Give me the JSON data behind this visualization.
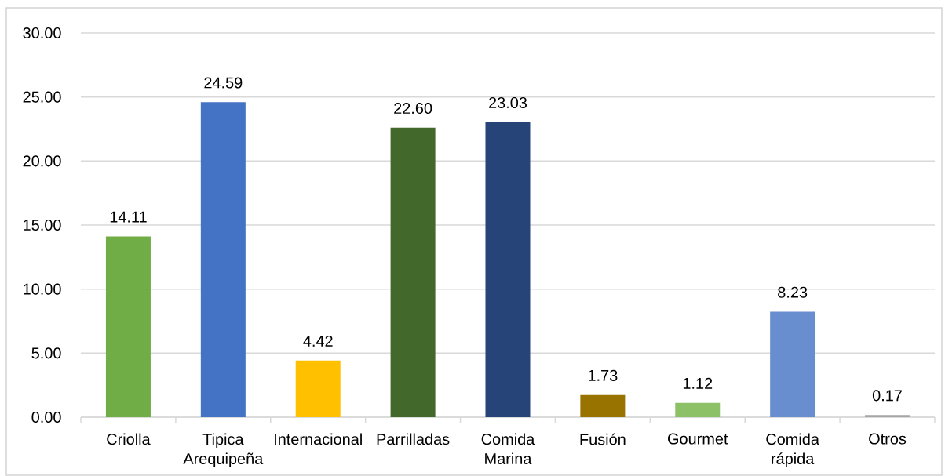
{
  "chart_data": {
    "type": "bar",
    "categories": [
      "Criolla",
      "Tipica Arequipeña",
      "Internacional",
      "Parrilladas",
      "Comida Marina",
      "Fusión",
      "Gourmet",
      "Comida rápida",
      "Otros"
    ],
    "values": [
      14.11,
      24.59,
      4.42,
      22.6,
      23.03,
      1.73,
      1.12,
      8.23,
      0.17
    ],
    "colors": [
      "#70ad47",
      "#4472c4",
      "#ffc000",
      "#43682b",
      "#264478",
      "#997300",
      "#8cc168",
      "#698ed0",
      "#a5a5a5"
    ],
    "value_labels": [
      "14.11",
      "24.59",
      "4.42",
      "22.60",
      "23.03",
      "1.73",
      "1.12",
      "8.23",
      "0.17"
    ],
    "ylim": [
      0,
      30
    ],
    "yticks": [
      {
        "value": 0,
        "label": "0.00"
      },
      {
        "value": 5,
        "label": "5.00"
      },
      {
        "value": 10,
        "label": "10.00"
      },
      {
        "value": 15,
        "label": "15.00"
      },
      {
        "value": 20,
        "label": "20.00"
      },
      {
        "value": 25,
        "label": "25.00"
      },
      {
        "value": 30,
        "label": "30.00"
      }
    ],
    "grid": "y"
  }
}
